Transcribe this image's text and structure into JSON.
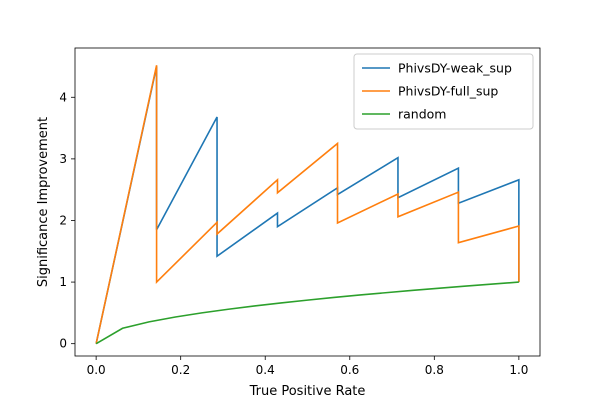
{
  "chart_data": {
    "type": "line",
    "title": "",
    "xlabel": "True Positive Rate",
    "ylabel": "Significance Improvement",
    "xlim": [
      -0.05,
      1.05
    ],
    "ylim": [
      -0.2,
      4.8
    ],
    "xticks": [
      0.0,
      0.2,
      0.4,
      0.6,
      0.8,
      1.0
    ],
    "xtick_labels": [
      "0.0",
      "0.2",
      "0.4",
      "0.6",
      "0.8",
      "1.0"
    ],
    "yticks": [
      0,
      1,
      2,
      3,
      4
    ],
    "ytick_labels": [
      "0",
      "1",
      "2",
      "3",
      "4"
    ],
    "grid": false,
    "legend": "top-right",
    "series": [
      {
        "name": "PhivsDY-weak_sup",
        "color": "#1f77b4",
        "x": [
          0.0,
          0.143,
          0.143,
          0.286,
          0.286,
          0.429,
          0.429,
          0.571,
          0.571,
          0.714,
          0.714,
          0.857,
          0.857,
          1.0,
          1.0
        ],
        "y": [
          0.0,
          4.5,
          1.85,
          3.68,
          1.42,
          2.12,
          1.9,
          2.53,
          2.42,
          3.02,
          2.37,
          2.85,
          2.28,
          2.66,
          1.0
        ]
      },
      {
        "name": "PhivsDY-full_sup",
        "color": "#ff7f0e",
        "x": [
          0.0,
          0.143,
          0.143,
          0.286,
          0.286,
          0.429,
          0.429,
          0.571,
          0.571,
          0.714,
          0.714,
          0.857,
          0.857,
          1.0,
          1.0
        ],
        "y": [
          0.0,
          4.52,
          1.0,
          1.97,
          1.78,
          2.66,
          2.45,
          3.25,
          1.96,
          2.43,
          2.06,
          2.46,
          1.64,
          1.91,
          1.0
        ]
      },
      {
        "name": "random",
        "color": "#2ca02c",
        "x": [
          0.0,
          0.0625,
          0.125,
          0.1875,
          0.25,
          0.3125,
          0.375,
          0.4375,
          0.5,
          0.5625,
          0.625,
          0.6875,
          0.75,
          0.8125,
          0.875,
          0.9375,
          1.0
        ],
        "y": [
          0.0,
          0.25,
          0.354,
          0.433,
          0.5,
          0.559,
          0.612,
          0.661,
          0.707,
          0.75,
          0.791,
          0.829,
          0.866,
          0.901,
          0.935,
          0.968,
          1.0
        ]
      }
    ]
  }
}
